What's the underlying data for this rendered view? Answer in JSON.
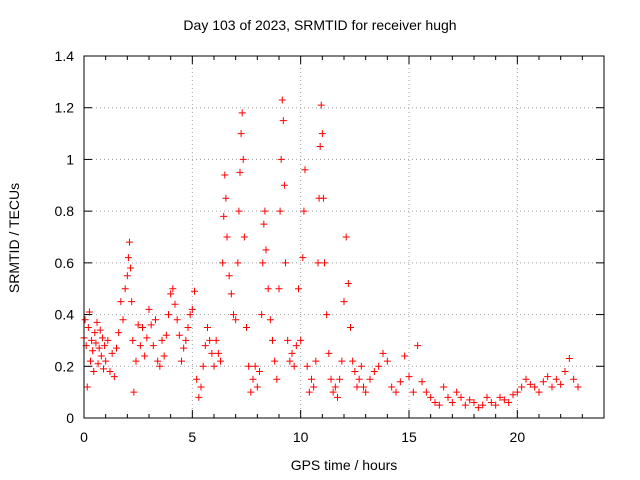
{
  "chart_data": {
    "type": "scatter",
    "title": "Day 103 of 2023, SRMTID for receiver hugh",
    "xlabel": "GPS time / hours",
    "ylabel": "SRMTID / TECUs",
    "xlim": [
      0,
      24
    ],
    "ylim": [
      0,
      1.4
    ],
    "xticks": [
      "0",
      "5",
      "10",
      "15",
      "20"
    ],
    "yticks": [
      "0",
      "0.2",
      "0.4",
      "0.6",
      "0.8",
      "1",
      "1.2",
      "1.4"
    ],
    "grid": true,
    "marker": "+",
    "color": "#ff0000",
    "series": [
      {
        "name": "SRMTID",
        "points": [
          [
            0.0,
            0.31
          ],
          [
            0.05,
            0.38
          ],
          [
            0.1,
            0.28
          ],
          [
            0.15,
            0.12
          ],
          [
            0.2,
            0.35
          ],
          [
            0.25,
            0.41
          ],
          [
            0.3,
            0.22
          ],
          [
            0.35,
            0.3
          ],
          [
            0.4,
            0.26
          ],
          [
            0.45,
            0.18
          ],
          [
            0.5,
            0.33
          ],
          [
            0.55,
            0.29
          ],
          [
            0.6,
            0.37
          ],
          [
            0.65,
            0.21
          ],
          [
            0.7,
            0.27
          ],
          [
            0.75,
            0.34
          ],
          [
            0.8,
            0.24
          ],
          [
            0.85,
            0.31
          ],
          [
            0.9,
            0.19
          ],
          [
            0.95,
            0.28
          ],
          [
            1.0,
            0.22
          ],
          [
            1.1,
            0.3
          ],
          [
            1.2,
            0.18
          ],
          [
            1.3,
            0.25
          ],
          [
            1.4,
            0.16
          ],
          [
            1.5,
            0.27
          ],
          [
            1.6,
            0.33
          ],
          [
            1.7,
            0.45
          ],
          [
            1.8,
            0.38
          ],
          [
            1.9,
            0.5
          ],
          [
            2.0,
            0.55
          ],
          [
            2.05,
            0.62
          ],
          [
            2.1,
            0.68
          ],
          [
            2.15,
            0.58
          ],
          [
            2.2,
            0.45
          ],
          [
            2.25,
            0.3
          ],
          [
            2.3,
            0.1
          ],
          [
            2.4,
            0.22
          ],
          [
            2.5,
            0.36
          ],
          [
            2.6,
            0.28
          ],
          [
            2.7,
            0.35
          ],
          [
            2.8,
            0.24
          ],
          [
            2.9,
            0.31
          ],
          [
            3.0,
            0.42
          ],
          [
            3.1,
            0.36
          ],
          [
            3.2,
            0.28
          ],
          [
            3.3,
            0.38
          ],
          [
            3.4,
            0.22
          ],
          [
            3.5,
            0.2
          ],
          [
            3.6,
            0.3
          ],
          [
            3.7,
            0.24
          ],
          [
            3.8,
            0.32
          ],
          [
            3.9,
            0.4
          ],
          [
            4.0,
            0.48
          ],
          [
            4.1,
            0.5
          ],
          [
            4.2,
            0.44
          ],
          [
            4.3,
            0.38
          ],
          [
            4.4,
            0.32
          ],
          [
            4.5,
            0.22
          ],
          [
            4.6,
            0.27
          ],
          [
            4.7,
            0.3
          ],
          [
            4.8,
            0.35
          ],
          [
            4.9,
            0.4
          ],
          [
            5.0,
            0.42
          ],
          [
            5.1,
            0.49
          ],
          [
            5.2,
            0.15
          ],
          [
            5.3,
            0.08
          ],
          [
            5.4,
            0.12
          ],
          [
            5.5,
            0.2
          ],
          [
            5.6,
            0.28
          ],
          [
            5.7,
            0.35
          ],
          [
            5.8,
            0.3
          ],
          [
            5.9,
            0.25
          ],
          [
            6.0,
            0.2
          ],
          [
            6.1,
            0.3
          ],
          [
            6.2,
            0.25
          ],
          [
            6.3,
            0.22
          ],
          [
            6.4,
            0.6
          ],
          [
            6.45,
            0.78
          ],
          [
            6.5,
            0.94
          ],
          [
            6.55,
            0.85
          ],
          [
            6.6,
            0.7
          ],
          [
            6.7,
            0.55
          ],
          [
            6.8,
            0.48
          ],
          [
            6.9,
            0.4
          ],
          [
            7.0,
            0.38
          ],
          [
            7.1,
            0.6
          ],
          [
            7.15,
            0.8
          ],
          [
            7.2,
            0.95
          ],
          [
            7.25,
            1.1
          ],
          [
            7.3,
            1.18
          ],
          [
            7.35,
            1.0
          ],
          [
            7.4,
            0.7
          ],
          [
            7.5,
            0.35
          ],
          [
            7.6,
            0.2
          ],
          [
            7.7,
            0.1
          ],
          [
            7.8,
            0.15
          ],
          [
            7.9,
            0.2
          ],
          [
            8.0,
            0.12
          ],
          [
            8.1,
            0.18
          ],
          [
            8.2,
            0.4
          ],
          [
            8.25,
            0.6
          ],
          [
            8.3,
            0.75
          ],
          [
            8.35,
            0.8
          ],
          [
            8.4,
            0.65
          ],
          [
            8.5,
            0.5
          ],
          [
            8.6,
            0.38
          ],
          [
            8.7,
            0.3
          ],
          [
            8.8,
            0.22
          ],
          [
            8.9,
            0.15
          ],
          [
            9.0,
            0.5
          ],
          [
            9.05,
            0.8
          ],
          [
            9.1,
            1.0
          ],
          [
            9.15,
            1.23
          ],
          [
            9.2,
            1.15
          ],
          [
            9.25,
            0.9
          ],
          [
            9.3,
            0.6
          ],
          [
            9.4,
            0.3
          ],
          [
            9.5,
            0.22
          ],
          [
            9.6,
            0.25
          ],
          [
            9.7,
            0.2
          ],
          [
            9.8,
            0.28
          ],
          [
            9.9,
            0.5
          ],
          [
            10.0,
            0.3
          ],
          [
            10.1,
            0.62
          ],
          [
            10.15,
            0.8
          ],
          [
            10.2,
            0.96
          ],
          [
            10.3,
            0.2
          ],
          [
            10.4,
            0.1
          ],
          [
            10.5,
            0.15
          ],
          [
            10.6,
            0.12
          ],
          [
            10.7,
            0.22
          ],
          [
            10.8,
            0.6
          ],
          [
            10.85,
            0.85
          ],
          [
            10.9,
            1.05
          ],
          [
            10.95,
            1.21
          ],
          [
            11.0,
            1.1
          ],
          [
            11.05,
            0.85
          ],
          [
            11.1,
            0.6
          ],
          [
            11.2,
            0.4
          ],
          [
            11.3,
            0.25
          ],
          [
            11.4,
            0.15
          ],
          [
            11.5,
            0.1
          ],
          [
            11.6,
            0.12
          ],
          [
            11.7,
            0.08
          ],
          [
            11.8,
            0.15
          ],
          [
            11.9,
            0.22
          ],
          [
            12.0,
            0.45
          ],
          [
            12.1,
            0.7
          ],
          [
            12.2,
            0.52
          ],
          [
            12.3,
            0.35
          ],
          [
            12.4,
            0.22
          ],
          [
            12.5,
            0.18
          ],
          [
            12.6,
            0.12
          ],
          [
            12.7,
            0.15
          ],
          [
            12.8,
            0.2
          ],
          [
            12.9,
            0.12
          ],
          [
            13.0,
            0.1
          ],
          [
            13.2,
            0.15
          ],
          [
            13.4,
            0.18
          ],
          [
            13.6,
            0.2
          ],
          [
            13.8,
            0.25
          ],
          [
            14.0,
            0.22
          ],
          [
            14.2,
            0.12
          ],
          [
            14.4,
            0.1
          ],
          [
            14.6,
            0.14
          ],
          [
            14.8,
            0.24
          ],
          [
            15.0,
            0.16
          ],
          [
            15.2,
            0.1
          ],
          [
            15.4,
            0.28
          ],
          [
            15.6,
            0.14
          ],
          [
            15.8,
            0.1
          ],
          [
            16.0,
            0.08
          ],
          [
            16.2,
            0.06
          ],
          [
            16.4,
            0.05
          ],
          [
            16.6,
            0.12
          ],
          [
            16.8,
            0.08
          ],
          [
            17.0,
            0.06
          ],
          [
            17.2,
            0.1
          ],
          [
            17.4,
            0.08
          ],
          [
            17.6,
            0.05
          ],
          [
            17.8,
            0.07
          ],
          [
            18.0,
            0.06
          ],
          [
            18.2,
            0.04
          ],
          [
            18.4,
            0.05
          ],
          [
            18.6,
            0.08
          ],
          [
            18.8,
            0.06
          ],
          [
            19.0,
            0.05
          ],
          [
            19.2,
            0.08
          ],
          [
            19.4,
            0.07
          ],
          [
            19.6,
            0.06
          ],
          [
            19.8,
            0.09
          ],
          [
            20.0,
            0.1
          ],
          [
            20.2,
            0.12
          ],
          [
            20.4,
            0.15
          ],
          [
            20.6,
            0.13
          ],
          [
            20.8,
            0.12
          ],
          [
            21.0,
            0.1
          ],
          [
            21.2,
            0.14
          ],
          [
            21.4,
            0.16
          ],
          [
            21.6,
            0.12
          ],
          [
            21.8,
            0.15
          ],
          [
            22.0,
            0.13
          ],
          [
            22.2,
            0.18
          ],
          [
            22.4,
            0.23
          ],
          [
            22.6,
            0.15
          ],
          [
            22.8,
            0.12
          ]
        ]
      }
    ]
  }
}
